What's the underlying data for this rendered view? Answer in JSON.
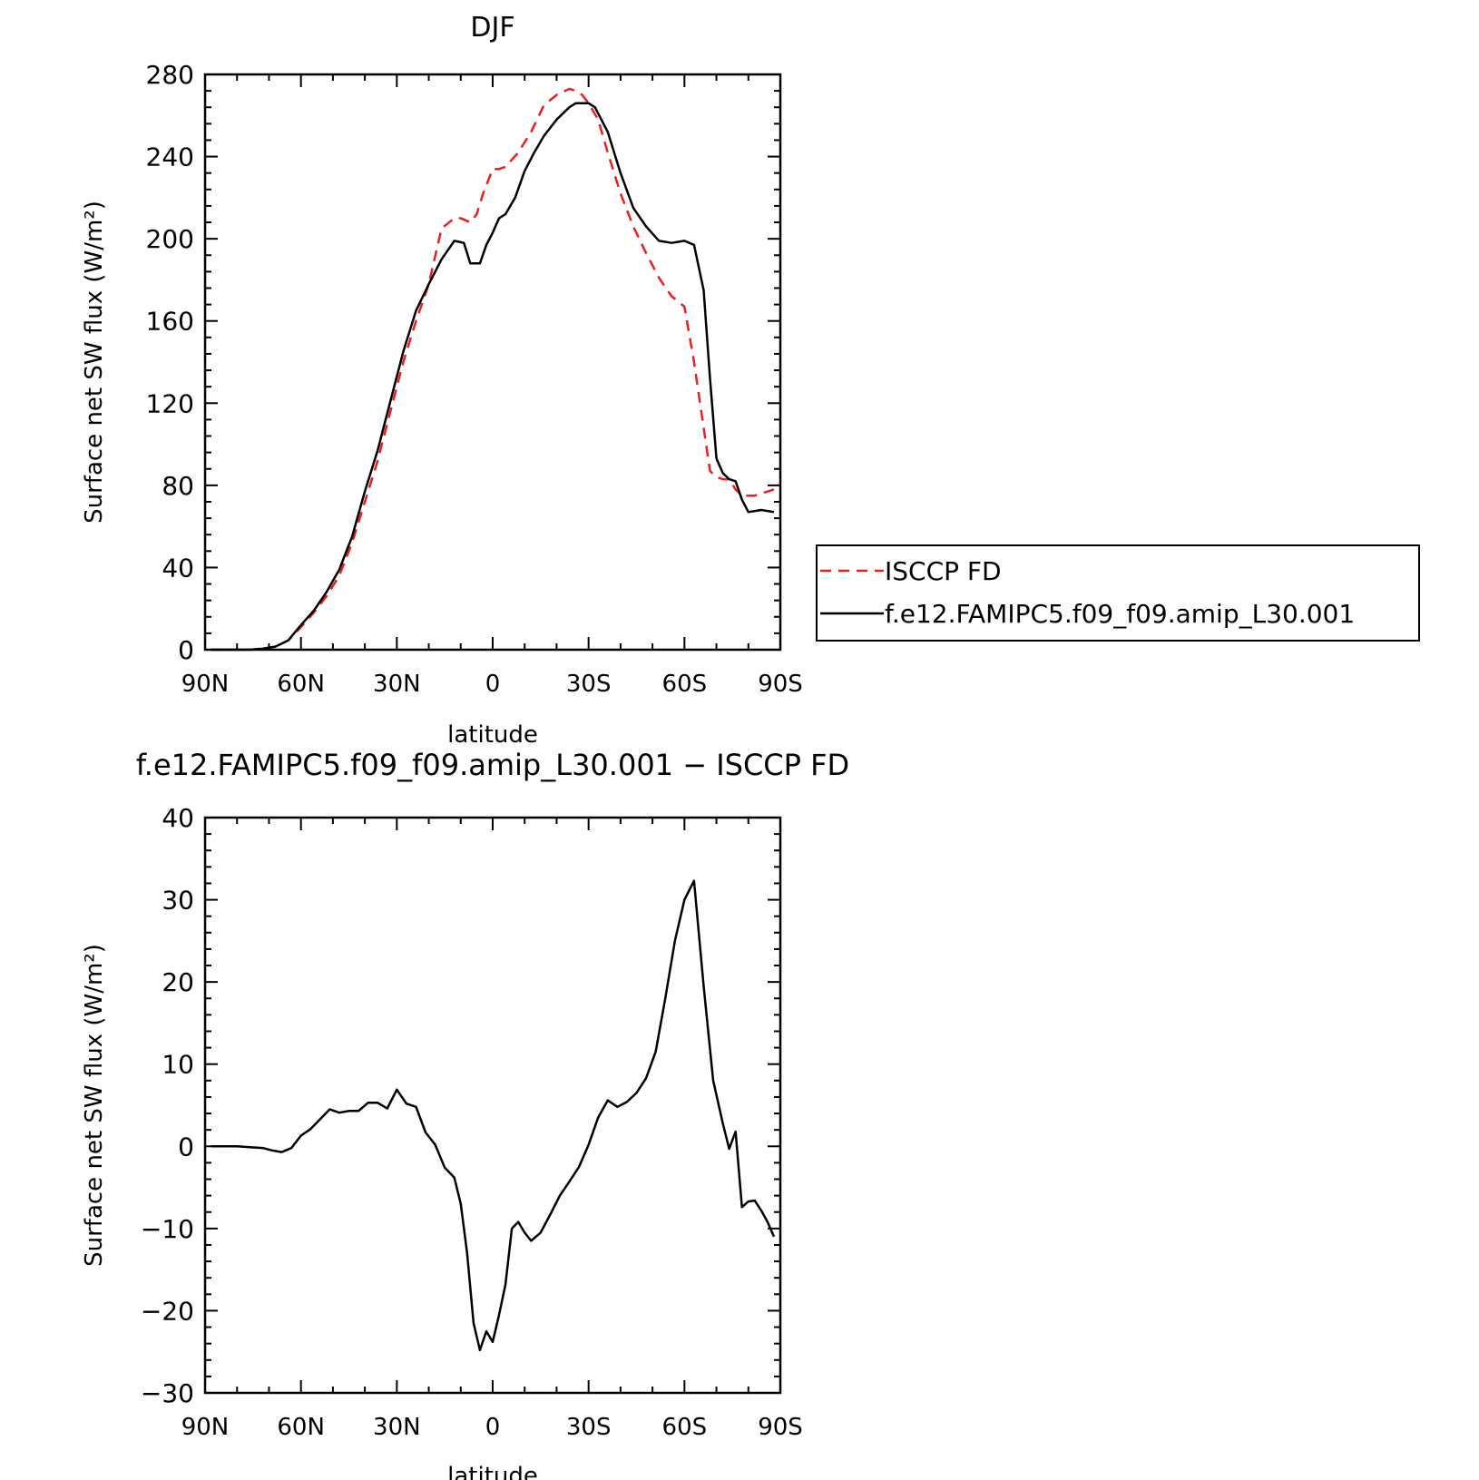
{
  "chart_data": [
    {
      "type": "line",
      "title": "DJF",
      "xlabel": "latitude",
      "ylabel": "Surface net SW flux (W/m²)",
      "xlim": [
        -90,
        90
      ],
      "ylim": [
        0,
        280
      ],
      "x_ticks": [
        -90,
        -60,
        -30,
        0,
        30,
        60,
        90
      ],
      "x_tick_labels": [
        "90N",
        "60N",
        "30N",
        "0",
        "30S",
        "60S",
        "90S"
      ],
      "y_ticks": [
        0,
        40,
        80,
        120,
        160,
        200,
        240,
        280
      ],
      "y_tick_labels": [
        "0",
        "40",
        "80",
        "120",
        "160",
        "200",
        "240",
        "280"
      ],
      "legend_position": "right",
      "grid": false,
      "series": [
        {
          "name": "ISCCP FD",
          "color": "#e8211c",
          "dash": "dashed",
          "x": [
            -88,
            -84,
            -80,
            -76,
            -72,
            -68,
            -64,
            -60,
            -56,
            -52,
            -48,
            -44,
            -40,
            -36,
            -32,
            -28,
            -24,
            -20,
            -16,
            -12,
            -10,
            -7,
            -5,
            -3,
            0,
            2,
            4,
            8,
            12,
            16,
            20,
            24,
            26,
            28,
            30,
            33,
            36,
            40,
            44,
            48,
            52,
            56,
            60,
            63,
            66,
            68,
            70,
            72,
            74,
            76,
            78,
            80,
            82,
            84,
            88
          ],
          "values": [
            0,
            0,
            0,
            0,
            0.5,
            1.5,
            4.5,
            11,
            18,
            26,
            36,
            52,
            72,
            92,
            116,
            140,
            160,
            178,
            205,
            210,
            210,
            208,
            212,
            222,
            234,
            234,
            235,
            242,
            252,
            265,
            270,
            273,
            272,
            270,
            266,
            258,
            242,
            222,
            206,
            193,
            181,
            172,
            167,
            140,
            108,
            87,
            84,
            83,
            83,
            78,
            75,
            75,
            75,
            76,
            78
          ]
        },
        {
          "name": "f.e12.FAMIPC5.f09_f09.amip_L30.001",
          "color": "#000000",
          "dash": "solid",
          "x": [
            -88,
            -84,
            -80,
            -76,
            -72,
            -68,
            -64,
            -60,
            -56,
            -52,
            -48,
            -44,
            -40,
            -36,
            -32,
            -28,
            -24,
            -20,
            -16,
            -12,
            -9,
            -7,
            -4,
            -2,
            0,
            2,
            4,
            7,
            10,
            13,
            16,
            20,
            24,
            26,
            28,
            30,
            32,
            36,
            40,
            44,
            48,
            52,
            56,
            60,
            63,
            66,
            68,
            70,
            72,
            74,
            76,
            78,
            80,
            84,
            88
          ],
          "values": [
            0,
            0,
            0,
            0,
            0.5,
            1.5,
            4.5,
            12,
            19,
            28,
            39,
            55,
            77,
            97,
            121,
            145,
            165,
            178,
            190,
            199,
            198,
            188,
            188,
            197,
            203,
            210,
            212,
            220,
            233,
            242,
            250,
            258,
            264,
            266,
            266,
            266,
            264,
            252,
            232,
            215,
            206,
            199,
            198,
            199,
            197,
            175,
            132,
            93,
            86,
            83,
            82,
            73,
            67,
            68,
            67
          ]
        }
      ]
    },
    {
      "type": "line",
      "title": "f.e12.FAMIPC5.f09_f09.amip_L30.001 − ISCCP FD",
      "xlabel": "latitude",
      "ylabel": "Surface net SW flux (W/m²)",
      "xlim": [
        -90,
        90
      ],
      "ylim": [
        -30,
        40
      ],
      "x_ticks": [
        -90,
        -60,
        -30,
        0,
        30,
        60,
        90
      ],
      "x_tick_labels": [
        "90N",
        "60N",
        "30N",
        "0",
        "30S",
        "60S",
        "90S"
      ],
      "y_ticks": [
        -30,
        -20,
        -10,
        0,
        10,
        20,
        30,
        40
      ],
      "y_tick_labels": [
        "−30",
        "−20",
        "−10",
        "0",
        "10",
        "20",
        "30",
        "40"
      ],
      "grid": false,
      "series": [
        {
          "color": "#000000",
          "dash": "solid",
          "x": [
            -88,
            -84,
            -80,
            -76,
            -72,
            -69,
            -66,
            -63,
            -60,
            -57,
            -54,
            -51,
            -48,
            -45,
            -42,
            -39,
            -36,
            -33,
            -30,
            -27,
            -24,
            -21,
            -18,
            -15,
            -12,
            -10,
            -8,
            -6,
            -4,
            -2,
            0,
            2,
            4,
            6,
            8,
            10,
            12,
            15,
            18,
            21,
            24,
            27,
            30,
            33,
            36,
            39,
            42,
            45,
            48,
            51,
            54,
            57,
            60,
            63,
            66,
            69,
            72,
            74,
            76,
            78,
            80,
            82,
            84,
            86,
            88
          ],
          "values": [
            0,
            0,
            0,
            -0.1,
            -0.2,
            -0.5,
            -0.7,
            -0.2,
            1.3,
            2.1,
            3.3,
            4.5,
            4.1,
            4.3,
            4.3,
            5.3,
            5.3,
            4.6,
            6.9,
            5.2,
            4.8,
            1.7,
            0.2,
            -2.6,
            -3.8,
            -7,
            -13,
            -21.5,
            -24.8,
            -22.5,
            -23.8,
            -20.5,
            -16.8,
            -10,
            -9.2,
            -10.5,
            -11.5,
            -10.5,
            -8.3,
            -6,
            -4.3,
            -2.5,
            0.2,
            3.5,
            5.6,
            4.8,
            5.4,
            6.5,
            8.3,
            11.5,
            18,
            25,
            30,
            32.3,
            19.5,
            8,
            2.8,
            -0.3,
            1.8,
            -7.4,
            -6.7,
            -6.6,
            -7.8,
            -9.2,
            -11
          ]
        }
      ]
    }
  ]
}
